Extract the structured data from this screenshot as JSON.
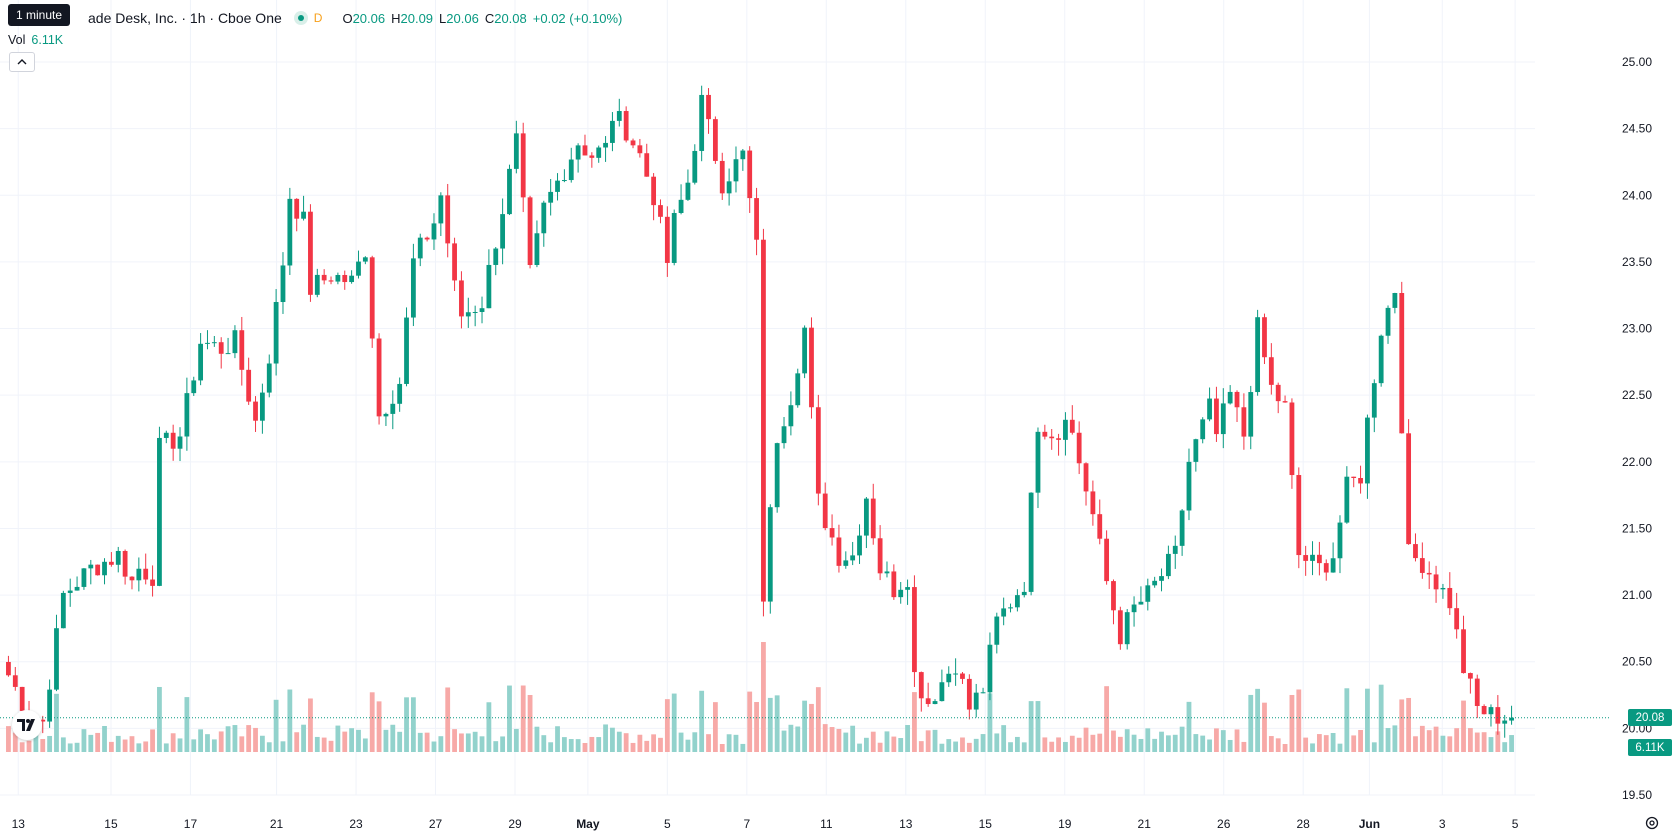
{
  "tooltip": "1 minute",
  "header": {
    "title": "ade Desk, Inc. · 1h · Cboe One",
    "delay_badge": "D",
    "ohlc": {
      "o_label": "O",
      "o": "20.06",
      "h_label": "H",
      "h": "20.09",
      "l_label": "L",
      "l": "20.06",
      "c_label": "C",
      "c": "20.08",
      "change": "+0.02 (+0.10%)"
    }
  },
  "volume": {
    "label": "Vol",
    "value": "6.11K"
  },
  "badges": {
    "last_price": "20.08",
    "last_volume": "6.11K"
  },
  "colors": {
    "up": "#089981",
    "down": "#f23645",
    "up_volume": "#92d2cc",
    "down_volume": "#f7a9a7",
    "grid": "#f0f3fa"
  },
  "icons": {
    "collapse": "chevron-up-icon",
    "logo": "tradingview-logo-icon",
    "settings": "gear-icon"
  },
  "chart_data": {
    "type": "candlestick",
    "ylim": [
      19.5,
      25.0
    ],
    "y_ticks": [
      "25.00",
      "24.50",
      "24.00",
      "23.50",
      "23.00",
      "22.50",
      "22.00",
      "21.50",
      "21.00",
      "20.50",
      "20.00",
      "19.50"
    ],
    "x_ticks": [
      "13",
      "15",
      "17",
      "21",
      "23",
      "27",
      "29",
      "May",
      "5",
      "7",
      "11",
      "13",
      "15",
      "19",
      "21",
      "26",
      "28",
      "Jun",
      "3",
      "5"
    ],
    "last_price": 20.08,
    "segments": [
      {
        "start": 0,
        "end": 21,
        "points": [
          [
            0,
            20.4
          ],
          [
            3,
            20.1
          ],
          [
            5,
            20.05
          ],
          [
            8,
            21.0
          ],
          [
            12,
            21.2
          ],
          [
            14,
            21.25
          ],
          [
            16,
            21.3
          ],
          [
            18,
            21.1
          ],
          [
            19,
            21.2
          ],
          [
            21,
            21.15
          ]
        ]
      },
      {
        "start": 22,
        "end": 43,
        "points": [
          [
            22,
            22.1
          ],
          [
            25,
            22.2
          ],
          [
            28,
            22.9
          ],
          [
            31,
            22.85
          ],
          [
            33,
            22.9
          ],
          [
            35,
            22.5
          ],
          [
            36,
            22.3
          ],
          [
            38,
            22.8
          ],
          [
            40,
            23.5
          ],
          [
            41,
            24.0
          ],
          [
            43,
            23.8
          ]
        ]
      },
      {
        "start": 44,
        "end": 65,
        "points": [
          [
            44,
            23.3
          ],
          [
            47,
            23.4
          ],
          [
            50,
            23.35
          ],
          [
            52,
            23.6
          ],
          [
            54,
            22.35
          ],
          [
            57,
            22.6
          ],
          [
            59,
            23.5
          ],
          [
            62,
            23.8
          ],
          [
            63,
            24.0
          ],
          [
            65,
            23.3
          ]
        ]
      },
      {
        "start": 66,
        "end": 87,
        "points": [
          [
            66,
            23.1
          ],
          [
            69,
            23.2
          ],
          [
            72,
            23.9
          ],
          [
            74,
            24.4
          ],
          [
            76,
            23.4
          ],
          [
            78,
            23.9
          ],
          [
            80,
            24.1
          ],
          [
            83,
            24.4
          ],
          [
            85,
            24.3
          ],
          [
            87,
            24.35
          ]
        ]
      },
      {
        "start": 88,
        "end": 109,
        "points": [
          [
            88,
            24.6
          ],
          [
            90,
            24.5
          ],
          [
            92,
            24.3
          ],
          [
            94,
            24.0
          ],
          [
            96,
            23.5
          ],
          [
            97,
            23.8
          ],
          [
            99,
            24.1
          ],
          [
            101,
            24.7
          ],
          [
            104,
            24.1
          ],
          [
            107,
            24.3
          ],
          [
            109,
            23.6
          ]
        ]
      },
      {
        "start": 110,
        "end": 131,
        "points": [
          [
            110,
            21.0
          ],
          [
            112,
            22.2
          ],
          [
            114,
            22.5
          ],
          [
            116,
            23.0
          ],
          [
            118,
            21.7
          ],
          [
            121,
            21.3
          ],
          [
            123,
            21.3
          ],
          [
            125,
            21.75
          ],
          [
            127,
            21.2
          ],
          [
            129,
            21.05
          ],
          [
            131,
            21.15
          ]
        ]
      },
      {
        "start": 132,
        "end": 153,
        "points": [
          [
            132,
            20.4
          ],
          [
            134,
            20.2
          ],
          [
            136,
            20.35
          ],
          [
            138,
            20.5
          ],
          [
            140,
            20.15
          ],
          [
            142,
            20.3
          ],
          [
            144,
            20.8
          ],
          [
            146,
            20.95
          ],
          [
            148,
            21.1
          ],
          [
            150,
            22.3
          ],
          [
            153,
            22.2
          ]
        ]
      },
      {
        "start": 154,
        "end": 175,
        "points": [
          [
            154,
            22.4
          ],
          [
            156,
            22.0
          ],
          [
            158,
            21.6
          ],
          [
            160,
            21.1
          ],
          [
            162,
            20.7
          ],
          [
            164,
            20.9
          ],
          [
            166,
            21.0
          ],
          [
            168,
            21.15
          ],
          [
            170,
            21.3
          ],
          [
            172,
            22.0
          ],
          [
            175,
            22.4
          ]
        ]
      },
      {
        "start": 176,
        "end": 197,
        "points": [
          [
            176,
            22.2
          ],
          [
            178,
            22.5
          ],
          [
            180,
            22.2
          ],
          [
            182,
            23.0
          ],
          [
            184,
            22.55
          ],
          [
            186,
            22.4
          ],
          [
            188,
            21.3
          ],
          [
            191,
            21.2
          ],
          [
            193,
            21.3
          ],
          [
            195,
            21.8
          ],
          [
            197,
            21.9
          ]
        ]
      },
      {
        "start": 198,
        "end": 219,
        "points": [
          [
            198,
            22.3
          ],
          [
            200,
            23.0
          ],
          [
            202,
            23.3
          ],
          [
            204,
            21.3
          ],
          [
            206,
            21.25
          ],
          [
            208,
            21.1
          ],
          [
            210,
            20.95
          ],
          [
            212,
            20.45
          ],
          [
            214,
            20.15
          ],
          [
            216,
            20.1
          ],
          [
            219,
            20.08
          ]
        ]
      }
    ],
    "seed": 7
  }
}
